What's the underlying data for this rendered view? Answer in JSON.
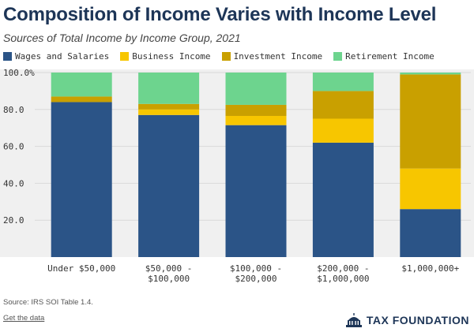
{
  "title": "Composition of Income Varies with Income Level",
  "subtitle": "Sources of Total Income by Income Group, 2021",
  "source": "Source: IRS SOI Table 1.4.",
  "get_data_label": "Get the data",
  "brand_name": "TAX FOUNDATION",
  "colors": {
    "background": "#f0f0f0",
    "title": "#1d3557"
  },
  "chart_data": {
    "type": "bar",
    "stacked": true,
    "title": "Composition of Income Varies with Income Level",
    "subtitle": "Sources of Total Income by Income Group, 2021",
    "categories": [
      [
        "Under $50,000"
      ],
      [
        "$50,000 -",
        "$100,000"
      ],
      [
        "$100,000 -",
        "$200,000"
      ],
      [
        "$200,000 -",
        "$1,000,000"
      ],
      [
        "$1,000,000+"
      ]
    ],
    "series": [
      {
        "name": "Wages and Salaries",
        "color": "#2b5487",
        "values": [
          84,
          77,
          71.5,
          62,
          26
        ]
      },
      {
        "name": "Business Income",
        "color": "#f7c600",
        "values": [
          0,
          3,
          5,
          13,
          22
        ]
      },
      {
        "name": "Investment Income",
        "color": "#c9a000",
        "values": [
          3,
          3,
          6,
          15,
          51
        ]
      },
      {
        "name": "Retirement Income",
        "color": "#6dd48e",
        "values": [
          13,
          17,
          17.5,
          10,
          1
        ]
      }
    ],
    "ylim": [
      0,
      100
    ],
    "yticks": [
      20,
      40,
      60,
      80,
      100
    ],
    "ytick_labels": [
      "20.0",
      "40.0",
      "60.0",
      "80.0",
      "100.0%"
    ],
    "grid": true,
    "legend_position": "top-left"
  }
}
